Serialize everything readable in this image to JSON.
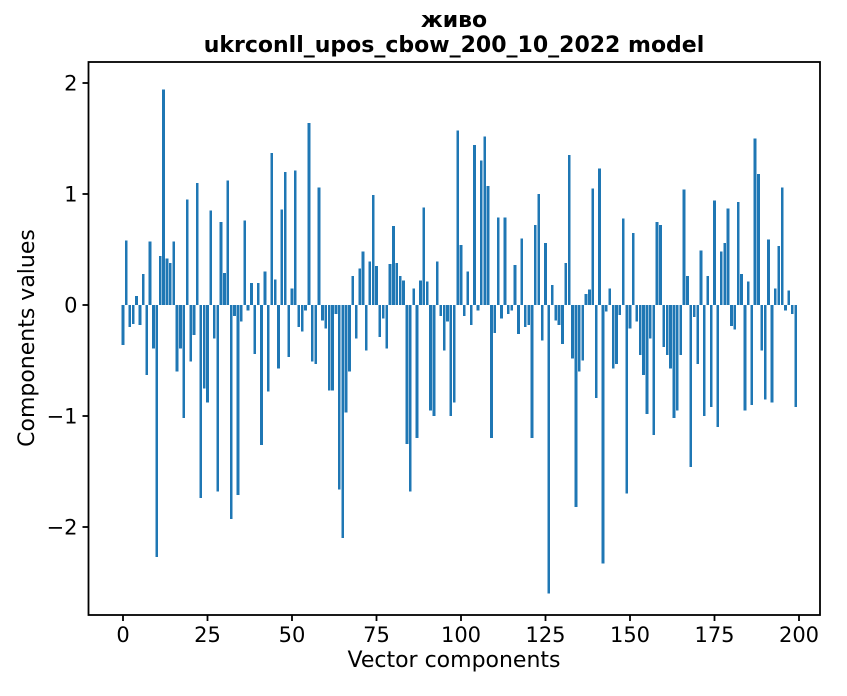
{
  "title": "живо",
  "subtitle": "ukrconll_upos_cbow_200_10_2022 model",
  "axes": {
    "ylabel": "Components values",
    "xlabel": "Vector components"
  },
  "chart_data": {
    "type": "bar",
    "title": "живо",
    "subtitle": "ukrconll_upos_cbow_200_10_2022 model",
    "xlabel": "Vector components",
    "ylabel": "Components values",
    "legend": "none",
    "grid": false,
    "bar_color": "#1f77b4",
    "text_color": "#000000",
    "x_ticks": [
      0,
      25,
      50,
      75,
      100,
      125,
      150,
      175,
      200
    ],
    "y_ticks": [
      2,
      1,
      0,
      -1,
      -2
    ],
    "xlim": [
      -10.4,
      206.2
    ],
    "ylim": [
      -2.79,
      2.19
    ],
    "n_components": 200,
    "values": [
      -0.36,
      0.58,
      -0.2,
      -0.17,
      0.08,
      -0.18,
      0.28,
      -0.63,
      0.57,
      -0.39,
      -2.27,
      0.44,
      1.94,
      0.42,
      0.38,
      0.57,
      -0.6,
      -0.39,
      -1.02,
      0.95,
      -0.51,
      -0.27,
      1.1,
      -1.74,
      -0.75,
      -0.88,
      0.85,
      -0.3,
      -1.68,
      0.75,
      0.29,
      1.12,
      -1.93,
      -0.1,
      -1.71,
      -0.15,
      0.76,
      -0.05,
      0.2,
      -0.44,
      0.2,
      -1.26,
      0.3,
      -0.78,
      1.37,
      0.23,
      -0.57,
      0.86,
      1.2,
      -0.47,
      0.15,
      1.21,
      -0.2,
      -0.24,
      -0.05,
      1.64,
      -0.51,
      -0.53,
      1.06,
      -0.14,
      -0.21,
      -0.77,
      -0.77,
      -0.08,
      -1.66,
      -2.1,
      -0.97,
      -0.6,
      0.26,
      -0.3,
      0.33,
      0.48,
      -0.41,
      0.39,
      0.99,
      0.35,
      -0.29,
      -0.12,
      -0.39,
      0.37,
      0.71,
      0.38,
      0.26,
      0.22,
      -1.25,
      -1.68,
      0.15,
      -1.2,
      0.22,
      0.88,
      0.21,
      -0.95,
      -1.0,
      0.39,
      -0.1,
      -0.41,
      -0.15,
      -1.0,
      -0.88,
      1.57,
      0.54,
      -0.1,
      0.3,
      -0.18,
      1.44,
      -0.05,
      1.3,
      1.52,
      1.07,
      -1.2,
      -0.25,
      0.79,
      -0.12,
      0.79,
      -0.08,
      -0.05,
      0.36,
      -0.26,
      0.6,
      -0.2,
      -0.18,
      -1.2,
      0.72,
      1.0,
      -0.32,
      0.56,
      -2.6,
      0.18,
      -0.14,
      -0.18,
      -0.35,
      0.38,
      1.35,
      -0.48,
      -1.82,
      -0.6,
      -0.5,
      0.1,
      0.14,
      1.05,
      -0.84,
      1.23,
      -2.33,
      -0.06,
      0.15,
      -0.57,
      -0.53,
      -0.09,
      0.78,
      -1.7,
      -0.21,
      0.65,
      -0.15,
      -0.45,
      -0.63,
      -0.98,
      -0.3,
      -1.17,
      0.75,
      0.72,
      -0.38,
      -0.45,
      -0.57,
      -1.02,
      -0.95,
      -0.45,
      1.04,
      0.26,
      -1.46,
      -0.11,
      -0.53,
      0.49,
      -1.0,
      0.26,
      -0.92,
      0.94,
      -1.1,
      0.48,
      0.56,
      0.87,
      -0.19,
      -0.22,
      0.93,
      0.28,
      -0.95,
      0.21,
      -0.9,
      1.5,
      1.18,
      -0.41,
      -0.85,
      0.59,
      -0.88,
      0.15,
      0.53,
      1.06,
      -0.05,
      0.13,
      -0.08,
      -0.92
    ]
  }
}
